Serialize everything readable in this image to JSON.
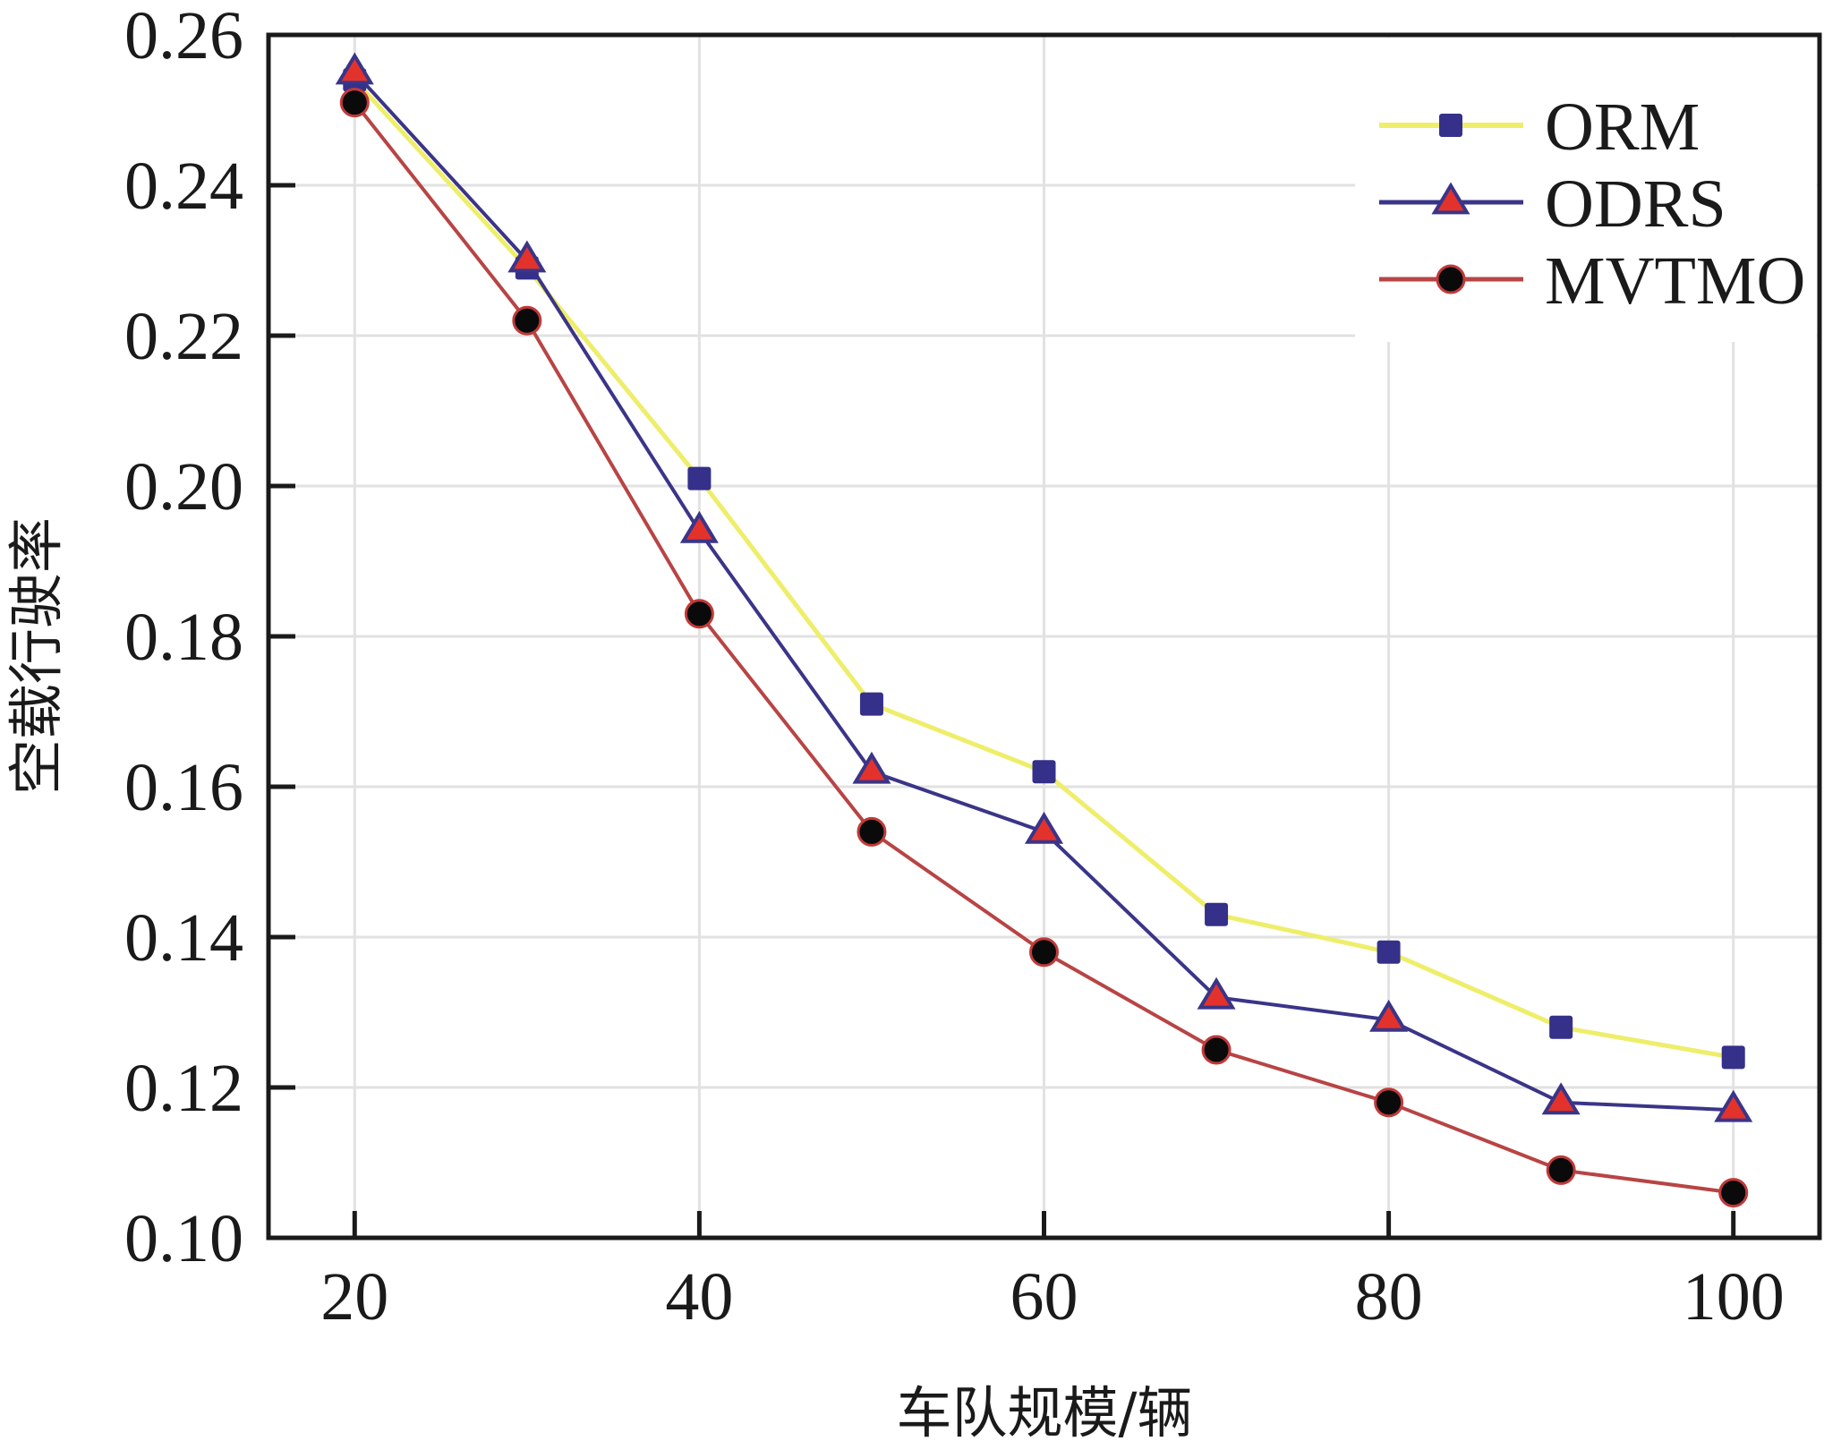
{
  "chart_data": {
    "type": "line",
    "title": "",
    "xlabel": "车队规模/辆",
    "ylabel": "空载行驶率",
    "x": [
      20,
      30,
      40,
      50,
      60,
      70,
      80,
      90,
      100
    ],
    "xlim": [
      15,
      105
    ],
    "ylim": [
      0.1,
      0.26
    ],
    "xticks": [
      20,
      40,
      60,
      80,
      100
    ],
    "xtick_labels": [
      "20",
      "40",
      "60",
      "80",
      "100"
    ],
    "yticks": [
      0.1,
      0.12,
      0.14,
      0.16,
      0.18,
      0.2,
      0.22,
      0.24,
      0.26
    ],
    "ytick_labels": [
      "0.10",
      "0.12",
      "0.14",
      "0.16",
      "0.18",
      "0.20",
      "0.22",
      "0.24",
      "0.26"
    ],
    "grid": true,
    "legend_position": "top-right",
    "series": [
      {
        "name": "ORM",
        "marker": "square",
        "line_color": "#eeee6a",
        "marker_fill": "#35318a",
        "marker_edge": "#35318a",
        "values": [
          0.254,
          0.229,
          0.201,
          0.171,
          0.162,
          0.143,
          0.138,
          0.128,
          0.124
        ]
      },
      {
        "name": "ODRS",
        "marker": "triangle",
        "line_color": "#3a3588",
        "marker_fill": "#e3322b",
        "marker_edge": "#3a3588",
        "values": [
          0.255,
          0.23,
          0.194,
          0.162,
          0.154,
          0.132,
          0.129,
          0.118,
          0.117
        ]
      },
      {
        "name": "MVTMO",
        "marker": "circle",
        "line_color": "#b84444",
        "marker_fill": "#0a0a0a",
        "marker_edge": "#c03a3a",
        "values": [
          0.251,
          0.222,
          0.183,
          0.154,
          0.138,
          0.125,
          0.118,
          0.109,
          0.106
        ]
      }
    ]
  }
}
